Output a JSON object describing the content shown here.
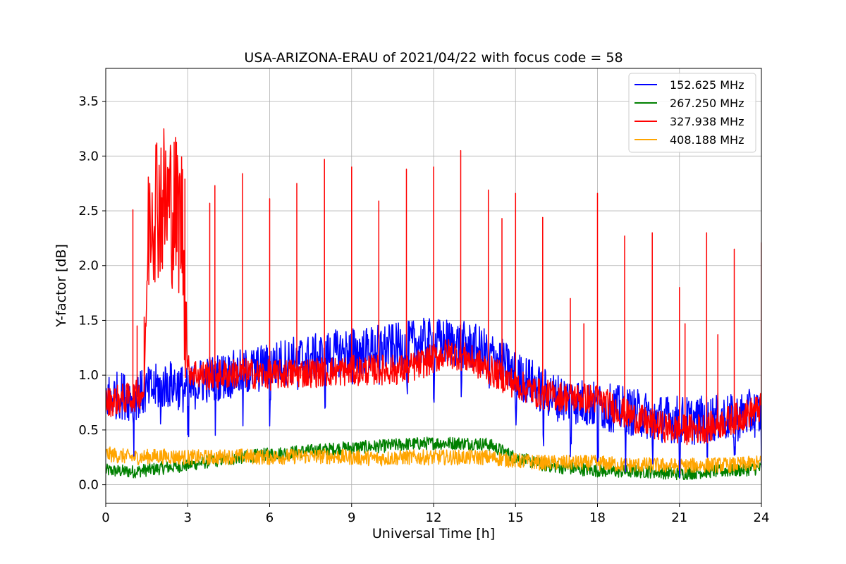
{
  "chart_data": {
    "type": "line",
    "title": "USA-ARIZONA-ERAU of 2021/04/22 with focus code = 58",
    "xlabel": "Universal Time [h]",
    "ylabel": "Y-factor [dB]",
    "xlim": [
      0,
      24
    ],
    "ylim": [
      -0.17,
      3.8
    ],
    "xticks": [
      0,
      3,
      6,
      9,
      12,
      15,
      18,
      21,
      24
    ],
    "yticks": [
      0.0,
      0.5,
      1.0,
      1.5,
      2.0,
      2.5,
      3.0,
      3.5
    ],
    "grid": true,
    "legend_position": "top-right",
    "series": [
      {
        "name": "152.625 MHz",
        "color": "#0000ff",
        "x": [
          0,
          0.5,
          1,
          1.5,
          2,
          2.5,
          3,
          3.5,
          4,
          4.5,
          5,
          5.5,
          6,
          6.5,
          7,
          7.5,
          8,
          8.5,
          9,
          9.5,
          10,
          10.5,
          11,
          11.5,
          12,
          12.5,
          13,
          13.5,
          14,
          14.5,
          15,
          15.5,
          16,
          16.5,
          17,
          17.5,
          18,
          18.5,
          19,
          19.5,
          20,
          20.5,
          21,
          21.5,
          22,
          22.5,
          23,
          23.5,
          24
        ],
        "y": [
          0.8,
          0.82,
          0.8,
          0.85,
          0.9,
          0.92,
          0.85,
          0.95,
          0.98,
          1.0,
          1.02,
          1.05,
          1.08,
          1.12,
          1.15,
          1.15,
          1.18,
          1.2,
          1.22,
          1.22,
          1.25,
          1.25,
          1.27,
          1.3,
          1.3,
          1.3,
          1.28,
          1.25,
          1.2,
          1.12,
          1.0,
          0.95,
          0.85,
          0.8,
          0.78,
          0.75,
          0.72,
          0.7,
          0.68,
          0.65,
          0.62,
          0.6,
          0.6,
          0.58,
          0.6,
          0.62,
          0.6,
          0.65,
          0.65
        ]
      },
      {
        "name": "267.250 MHz",
        "color": "#008000",
        "x": [
          0,
          1,
          2,
          3,
          4,
          5,
          6,
          7,
          8,
          9,
          10,
          11,
          12,
          13,
          14,
          15,
          16,
          17,
          18,
          19,
          20,
          21,
          22,
          23,
          24
        ],
        "y": [
          0.13,
          0.12,
          0.15,
          0.18,
          0.22,
          0.25,
          0.28,
          0.3,
          0.32,
          0.34,
          0.35,
          0.37,
          0.38,
          0.38,
          0.37,
          0.25,
          0.18,
          0.15,
          0.13,
          0.12,
          0.12,
          0.1,
          0.12,
          0.13,
          0.15
        ]
      },
      {
        "name": "327.938 MHz",
        "color": "#ff0000",
        "x": [
          0,
          0.5,
          1,
          1.4,
          1.6,
          2.0,
          2.4,
          2.8,
          3.0,
          3.5,
          4,
          5,
          6,
          7,
          8,
          9,
          10,
          11,
          12,
          12.5,
          13,
          13.5,
          14,
          15,
          16,
          17,
          18,
          19,
          20,
          21,
          22,
          23,
          24
        ],
        "y": [
          0.75,
          0.78,
          0.8,
          0.85,
          2.6,
          2.6,
          2.55,
          2.4,
          1.05,
          1.0,
          1.0,
          1.02,
          1.0,
          1.02,
          1.03,
          1.04,
          1.05,
          1.05,
          1.15,
          1.2,
          1.18,
          1.12,
          1.05,
          0.92,
          0.82,
          0.8,
          0.78,
          0.65,
          0.55,
          0.5,
          0.52,
          0.6,
          0.7
        ],
        "spikes": [
          {
            "x": 1.0,
            "y": 2.51
          },
          {
            "x": 1.15,
            "y": 1.45
          },
          {
            "x": 1.4,
            "y": 1.53
          },
          {
            "x": 2.9,
            "y": 2.79
          },
          {
            "x": 3.8,
            "y": 2.57
          },
          {
            "x": 4.0,
            "y": 2.73
          },
          {
            "x": 5.0,
            "y": 2.84
          },
          {
            "x": 6.0,
            "y": 2.61
          },
          {
            "x": 7.0,
            "y": 2.75
          },
          {
            "x": 8.0,
            "y": 2.97
          },
          {
            "x": 9.0,
            "y": 2.9
          },
          {
            "x": 10.0,
            "y": 2.59
          },
          {
            "x": 11.0,
            "y": 2.88
          },
          {
            "x": 12.0,
            "y": 2.9
          },
          {
            "x": 13.0,
            "y": 3.05
          },
          {
            "x": 14.0,
            "y": 2.69
          },
          {
            "x": 14.5,
            "y": 2.43
          },
          {
            "x": 15.0,
            "y": 2.66
          },
          {
            "x": 16.0,
            "y": 2.44
          },
          {
            "x": 17.0,
            "y": 1.7
          },
          {
            "x": 17.5,
            "y": 1.47
          },
          {
            "x": 18.0,
            "y": 2.66
          },
          {
            "x": 19.0,
            "y": 2.27
          },
          {
            "x": 20.0,
            "y": 2.3
          },
          {
            "x": 21.0,
            "y": 1.8
          },
          {
            "x": 21.2,
            "y": 1.47
          },
          {
            "x": 22.0,
            "y": 2.3
          },
          {
            "x": 22.4,
            "y": 1.37
          },
          {
            "x": 23.0,
            "y": 2.15
          },
          {
            "x": 24.0,
            "y": 2.21
          }
        ]
      },
      {
        "name": "408.188 MHz",
        "color": "#ffa500",
        "x": [
          0,
          1,
          2,
          3,
          4,
          5,
          6,
          7,
          8,
          9,
          10,
          11,
          12,
          13,
          14,
          15,
          16,
          17,
          18,
          19,
          20,
          21,
          22,
          23,
          24
        ],
        "y": [
          0.28,
          0.25,
          0.26,
          0.25,
          0.25,
          0.26,
          0.25,
          0.26,
          0.26,
          0.25,
          0.24,
          0.25,
          0.25,
          0.25,
          0.25,
          0.22,
          0.2,
          0.2,
          0.2,
          0.18,
          0.18,
          0.17,
          0.18,
          0.18,
          0.2
        ]
      }
    ]
  }
}
